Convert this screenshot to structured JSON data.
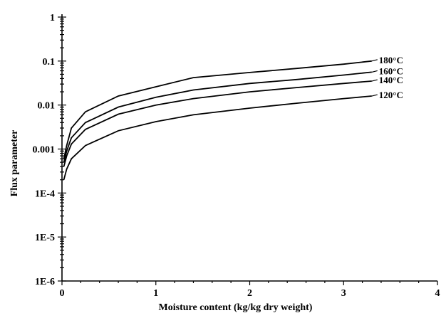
{
  "chart_data": {
    "type": "line",
    "xlabel": "Moisture content (kg/kg dry weight)",
    "ylabel": "Flux parameter",
    "xlim": [
      0,
      4
    ],
    "ylim": [
      1e-06,
      1
    ],
    "yscale": "log",
    "grid": false,
    "x_ticks": [
      0,
      1,
      2,
      3,
      4
    ],
    "x_tick_labels": [
      "0",
      "1",
      "2",
      "3",
      "4"
    ],
    "y_ticks": [
      1e-06,
      1e-05,
      0.0001,
      0.001,
      0.01,
      0.1,
      1
    ],
    "y_tick_labels": [
      "1E-6",
      "1E-5",
      "1E-4",
      "0.001",
      "0.01",
      "0.1",
      "1"
    ],
    "series": [
      {
        "name": "180°C",
        "x": [
          0.02,
          0.05,
          0.1,
          0.25,
          0.6,
          1.0,
          1.4,
          2.0,
          2.5,
          3.0,
          3.3
        ],
        "y": [
          0.0006,
          0.0012,
          0.003,
          0.007,
          0.016,
          0.026,
          0.042,
          0.055,
          0.068,
          0.085,
          0.1
        ]
      },
      {
        "name": "160°C",
        "x": [
          0.02,
          0.05,
          0.1,
          0.25,
          0.6,
          1.0,
          1.4,
          2.0,
          2.5,
          3.0,
          3.3
        ],
        "y": [
          0.0005,
          0.0009,
          0.0018,
          0.004,
          0.009,
          0.015,
          0.022,
          0.031,
          0.038,
          0.048,
          0.056
        ]
      },
      {
        "name": "140°C",
        "x": [
          0.02,
          0.05,
          0.1,
          0.25,
          0.6,
          1.0,
          1.4,
          2.0,
          2.5,
          3.0,
          3.3
        ],
        "y": [
          0.0004,
          0.0007,
          0.0013,
          0.0028,
          0.0062,
          0.01,
          0.014,
          0.02,
          0.025,
          0.031,
          0.035
        ]
      },
      {
        "name": "120°C",
        "x": [
          0.02,
          0.05,
          0.1,
          0.25,
          0.6,
          1.0,
          1.4,
          2.0,
          2.5,
          3.0,
          3.3
        ],
        "y": [
          0.0002,
          0.00035,
          0.0006,
          0.0012,
          0.0026,
          0.0042,
          0.006,
          0.0085,
          0.011,
          0.014,
          0.016
        ]
      }
    ]
  }
}
